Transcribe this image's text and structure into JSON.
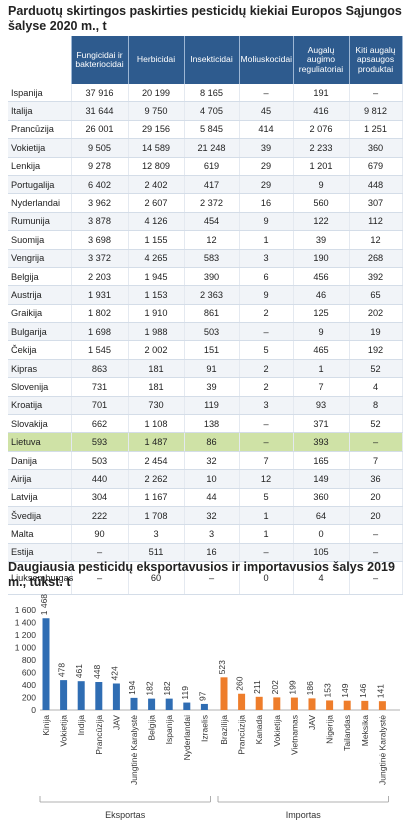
{
  "table": {
    "title": "Parduotų skirtingos paskirties pesticidų kiekiai Europos Sąjungos šalyse 2020 m., t",
    "headers": [
      "",
      "Fungicidai ir bakteriocidai",
      "Herbicidai",
      "Insekticidai",
      "Moliuskocidai",
      "Augalų augimo reguliatoriai",
      "Kiti augalų apsaugos produktai"
    ],
    "rows": [
      [
        "Ispanija",
        "37 916",
        "20 199",
        "8 165",
        "–",
        "191",
        "–"
      ],
      [
        "Italija",
        "31 644",
        "9 750",
        "4 705",
        "45",
        "416",
        "9 812"
      ],
      [
        "Prancūzija",
        "26 001",
        "29 156",
        "5 845",
        "414",
        "2 076",
        "1 251"
      ],
      [
        "Vokietija",
        "9 505",
        "14 589",
        "21 248",
        "39",
        "2 233",
        "360"
      ],
      [
        "Lenkija",
        "9 278",
        "12 809",
        "619",
        "29",
        "1 201",
        "679"
      ],
      [
        "Portugalija",
        "6 402",
        "2 402",
        "417",
        "29",
        "9",
        "448"
      ],
      [
        "Nyderlandai",
        "3 962",
        "2 607",
        "2 372",
        "16",
        "560",
        "307"
      ],
      [
        "Rumunija",
        "3 878",
        "4 126",
        "454",
        "9",
        "122",
        "112"
      ],
      [
        "Suomija",
        "3 698",
        "1 155",
        "12",
        "1",
        "39",
        "12"
      ],
      [
        "Vengrija",
        "3 372",
        "4 265",
        "583",
        "3",
        "190",
        "268"
      ],
      [
        "Belgija",
        "2 203",
        "1 945",
        "390",
        "6",
        "456",
        "392"
      ],
      [
        "Austrija",
        "1 931",
        "1 153",
        "2 363",
        "9",
        "46",
        "65"
      ],
      [
        "Graikija",
        "1 802",
        "1 910",
        "861",
        "2",
        "125",
        "202"
      ],
      [
        "Bulgarija",
        "1 698",
        "1 988",
        "503",
        "–",
        "9",
        "19"
      ],
      [
        "Čekija",
        "1 545",
        "2 002",
        "151",
        "5",
        "465",
        "192"
      ],
      [
        "Kipras",
        "863",
        "181",
        "91",
        "2",
        "1",
        "52"
      ],
      [
        "Slovenija",
        "731",
        "181",
        "39",
        "2",
        "7",
        "4"
      ],
      [
        "Kroatija",
        "701",
        "730",
        "119",
        "3",
        "93",
        "8"
      ],
      [
        "Slovakija",
        "662",
        "1 108",
        "138",
        "–",
        "371",
        "52"
      ],
      [
        "Lietuva",
        "593",
        "1 487",
        "86",
        "–",
        "393",
        "–"
      ],
      [
        "Danija",
        "503",
        "2 454",
        "32",
        "7",
        "165",
        "7"
      ],
      [
        "Airija",
        "440",
        "2 262",
        "10",
        "12",
        "149",
        "36"
      ],
      [
        "Latvija",
        "304",
        "1 167",
        "44",
        "5",
        "360",
        "20"
      ],
      [
        "Švedija",
        "222",
        "1 708",
        "32",
        "1",
        "64",
        "20"
      ],
      [
        "Malta",
        "90",
        "3",
        "3",
        "1",
        "0",
        "–"
      ],
      [
        "Estija",
        "–",
        "511",
        "16",
        "–",
        "105",
        "–"
      ],
      [
        "Liuksemburgas",
        "–",
        "60",
        "–",
        "0",
        "4",
        "–"
      ]
    ]
  },
  "chart_data": {
    "type": "bar",
    "title": "Daugiausia pesticidų eksportavusios ir importavusios šalys 2019 m., tūkst. t",
    "ylim": [
      0,
      1600
    ],
    "yticks": [
      "0",
      "200",
      "400",
      "600",
      "800",
      "1 000",
      "1 200",
      "1 400",
      "1 600"
    ],
    "grid": false,
    "groups": [
      {
        "name": "Eksportas",
        "color": "#2f6db3",
        "categories": [
          "Kinija",
          "Vokietija",
          "Indija",
          "Prancūzija",
          "JAV",
          "Jungtinė Karalystė",
          "Belgija",
          "Ispanija",
          "Nyderlandai",
          "Izraelis"
        ],
        "values": [
          1468,
          478,
          461,
          448,
          424,
          194,
          182,
          182,
          119,
          97
        ],
        "labels": [
          "1 468",
          "478",
          "461",
          "448",
          "424",
          "194",
          "182",
          "182",
          "119",
          "97"
        ]
      },
      {
        "name": "Importas",
        "color": "#ee7d2b",
        "categories": [
          "Brazilija",
          "Prancūzija",
          "Kanada",
          "Vokietija",
          "Vietnamas",
          "JAV",
          "Nigerija",
          "Tailandas",
          "Meksika",
          "Jungtinė Karalystė"
        ],
        "values": [
          523,
          260,
          211,
          202,
          199,
          186,
          153,
          149,
          146,
          141
        ],
        "labels": [
          "523",
          "260",
          "211",
          "202",
          "199",
          "186",
          "153",
          "149",
          "146",
          "141"
        ]
      }
    ]
  }
}
